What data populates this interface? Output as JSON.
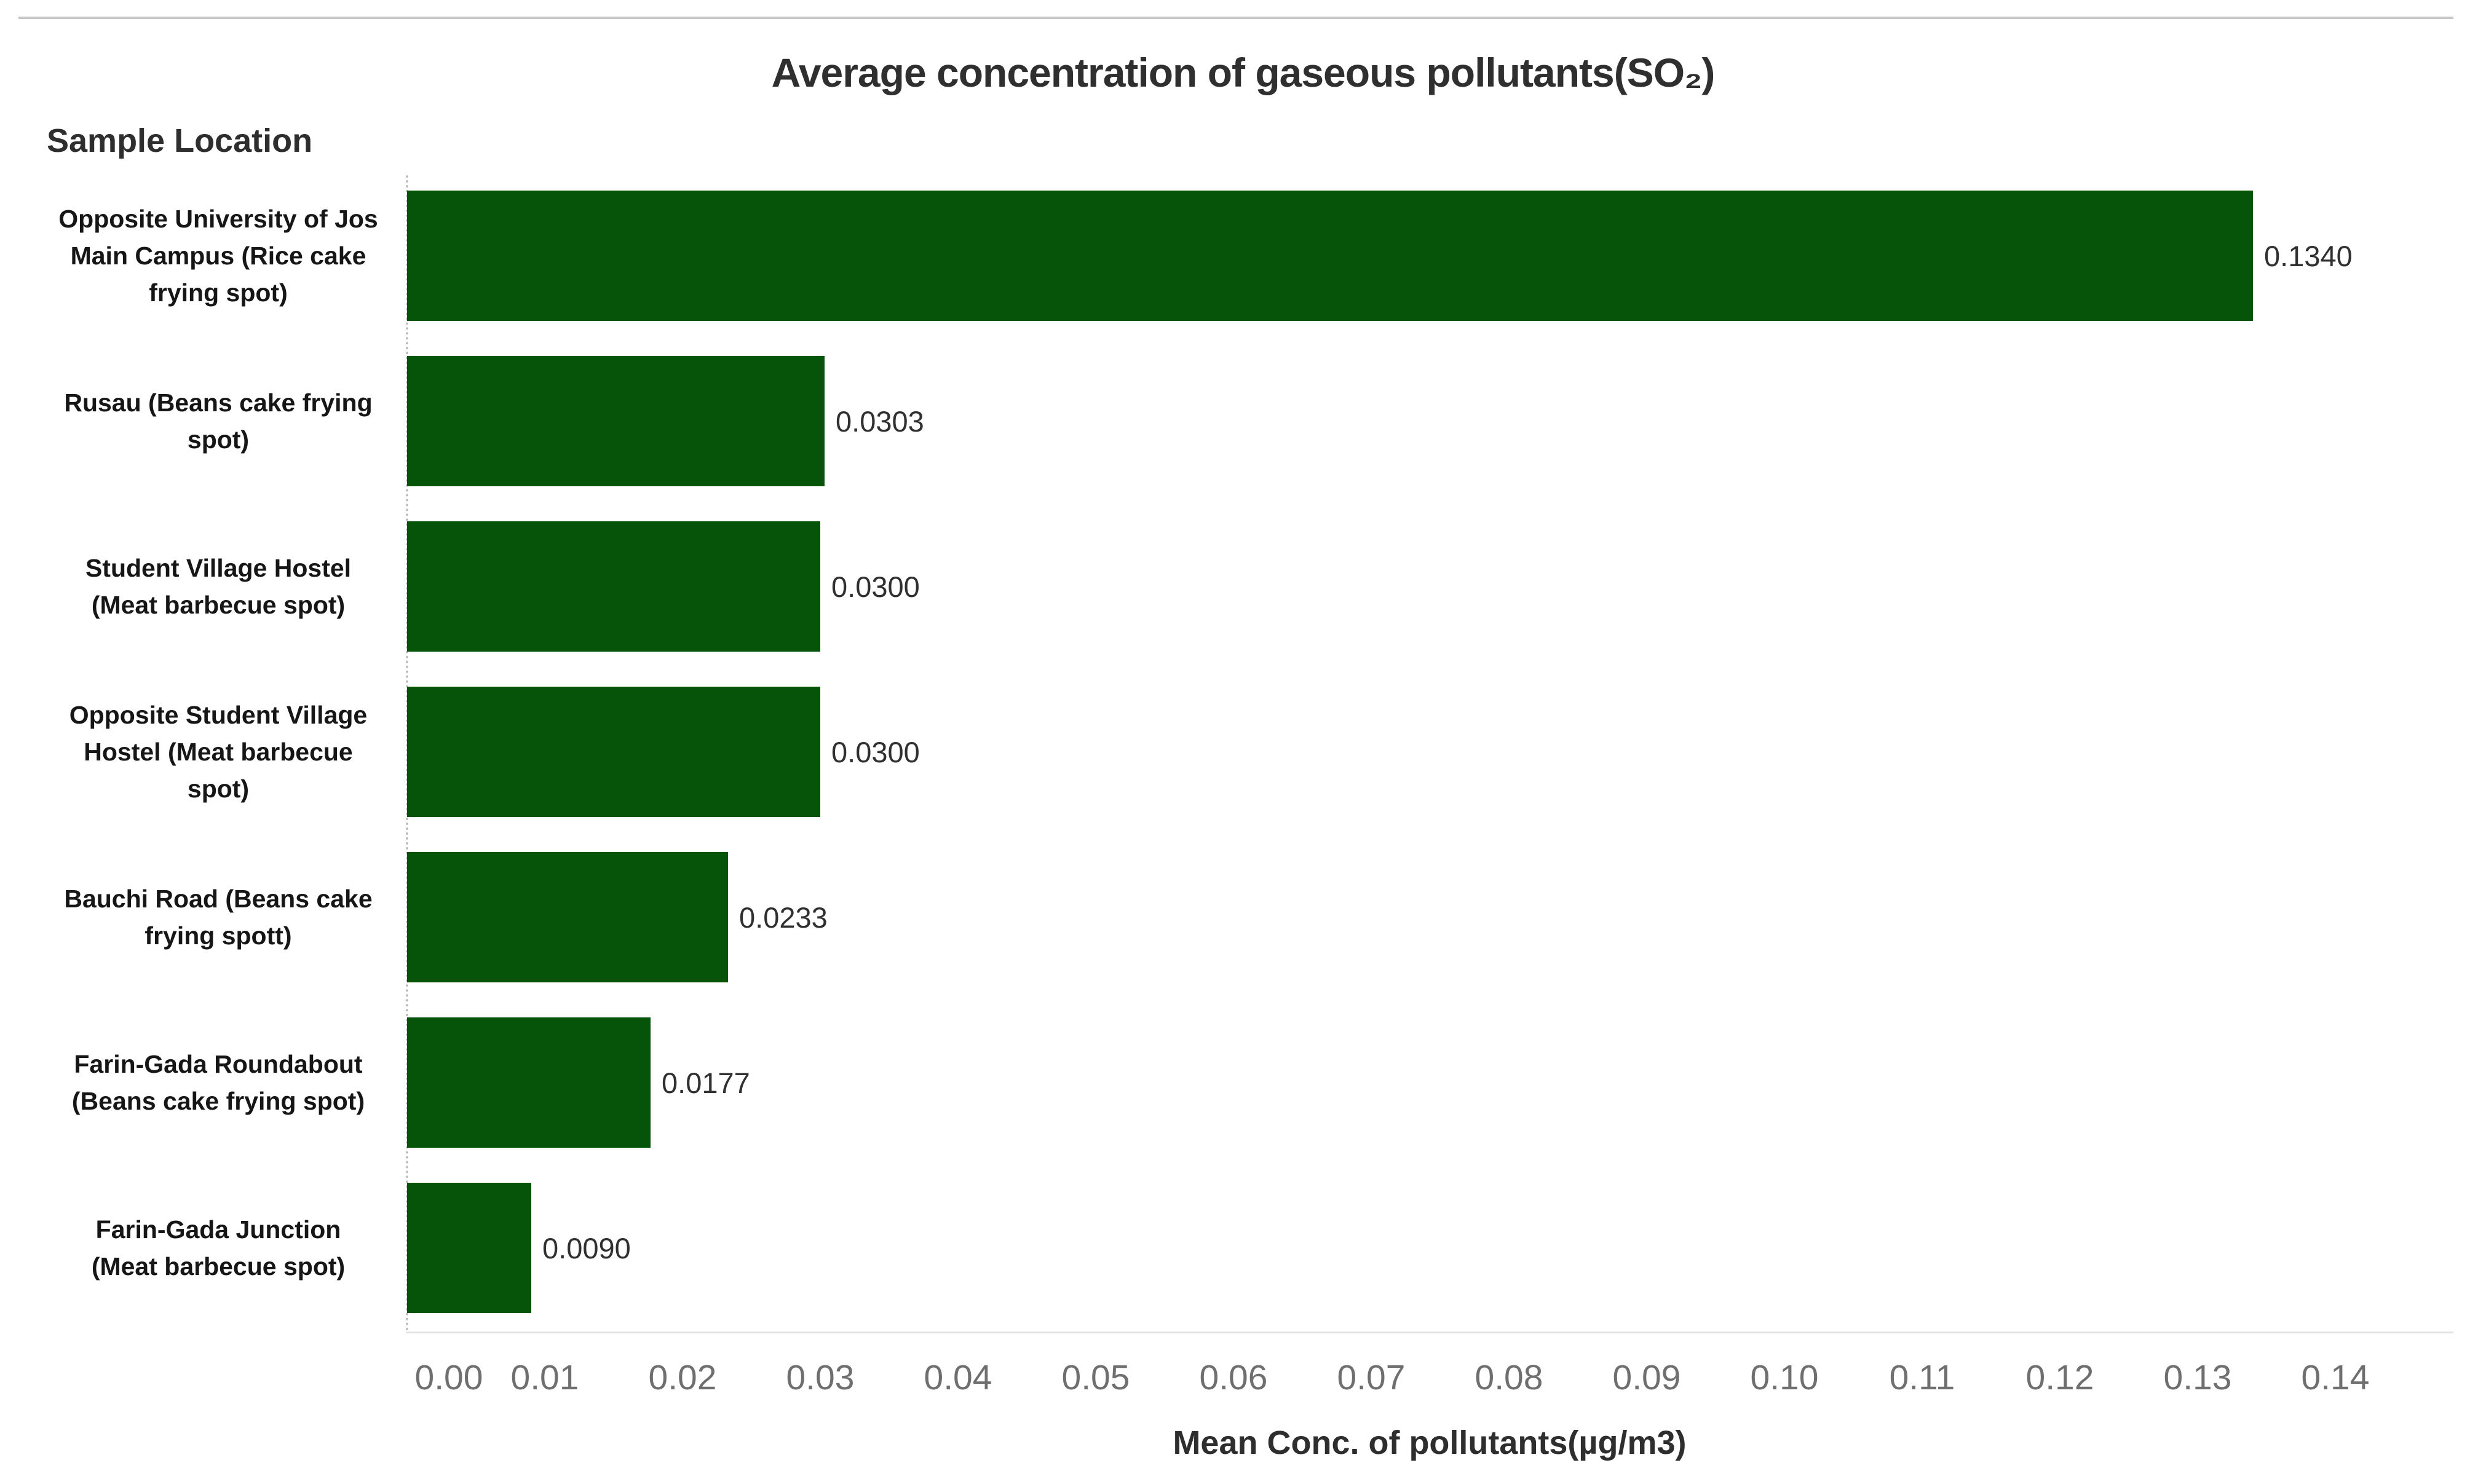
{
  "header": {
    "title": "Average concentration of gaseous pollutants(SO₂)",
    "y_axis_header": "Sample Location",
    "x_axis_title": "Mean Conc. of pollutants(µg/m3)"
  },
  "chart_data": {
    "type": "bar",
    "orientation": "horizontal",
    "title": "Average concentration of gaseous pollutants(SO₂)",
    "ylabel": "Sample Location",
    "xlabel": "Mean Conc. of pollutants(µg/m3)",
    "categories": [
      "Opposite University of Jos Main Campus (Rice cake frying spot)",
      "Rusau (Beans cake frying spot)",
      "Student Village Hostel (Meat barbecue spot)",
      "Opposite Student Village Hostel (Meat barbecue spot)",
      "Bauchi Road (Beans cake frying spott)",
      "Farin-Gada Roundabout (Beans cake frying spot)",
      "Farin-Gada Junction (Meat barbecue spot)"
    ],
    "category_lines": [
      [
        "Opposite University of Jos",
        "Main Campus (Rice cake",
        "frying spot)"
      ],
      [
        "Rusau (Beans cake frying",
        "spot)"
      ],
      [
        "Student Village Hostel",
        "(Meat barbecue spot)"
      ],
      [
        "Opposite Student Village",
        "Hostel (Meat barbecue",
        "spot)"
      ],
      [
        "Bauchi Road (Beans cake",
        "frying spott)"
      ],
      [
        "Farin-Gada Roundabout",
        "(Beans cake frying spot)"
      ],
      [
        "Farin-Gada Junction",
        "(Meat barbecue spot)"
      ]
    ],
    "values": [
      0.134,
      0.0303,
      0.03,
      0.03,
      0.0233,
      0.0177,
      0.009
    ],
    "value_labels": [
      "0.1340",
      "0.0303",
      "0.0300",
      "0.0300",
      "0.0233",
      "0.0177",
      "0.0090"
    ],
    "x_ticks": [
      "0.00",
      "0.01",
      "0.02",
      "0.03",
      "0.04",
      "0.05",
      "0.06",
      "0.07",
      "0.08",
      "0.09",
      "0.10",
      "0.11",
      "0.12",
      "0.13",
      "0.14"
    ],
    "xlim": [
      0,
      0.1475
    ],
    "grid": false,
    "legend": "none",
    "bar_color": "#065409",
    "tick_label_color": "#6f6f6f",
    "value_label_color": "#303030",
    "axis_line_color": "#e3e3e3",
    "zero_line_color": "#bdbdbd"
  }
}
